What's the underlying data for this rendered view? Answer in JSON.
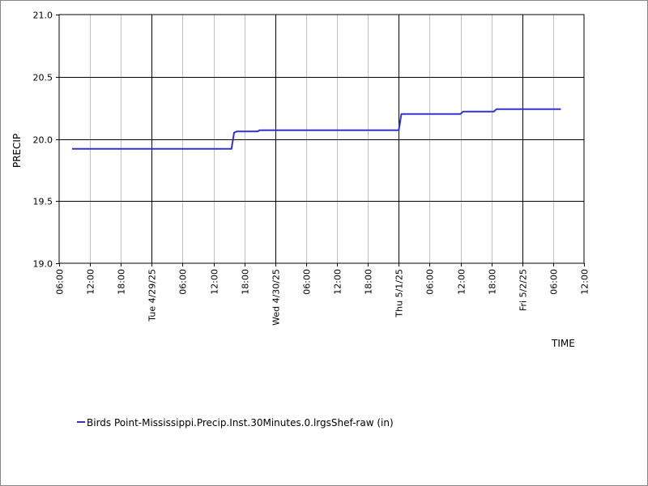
{
  "chart_data": {
    "type": "line",
    "title": "",
    "xlabel": "TIME",
    "ylabel": "PRECIP",
    "ylim": [
      19.0,
      21.0
    ],
    "y_ticks": [
      "19.0",
      "19.5",
      "20.0",
      "20.5",
      "21.0"
    ],
    "x_range": [
      "2025-04-28 06:00",
      "2025-05-02 12:00"
    ],
    "x_ticks": [
      {
        "t": "2025-04-28 06:00",
        "label": "06:00",
        "major": false
      },
      {
        "t": "2025-04-28 12:00",
        "label": "12:00",
        "major": false
      },
      {
        "t": "2025-04-28 18:00",
        "label": "18:00",
        "major": false
      },
      {
        "t": "2025-04-29 00:00",
        "label": "Tue 4/29/25",
        "major": true
      },
      {
        "t": "2025-04-29 06:00",
        "label": "06:00",
        "major": false
      },
      {
        "t": "2025-04-29 12:00",
        "label": "12:00",
        "major": false
      },
      {
        "t": "2025-04-29 18:00",
        "label": "18:00",
        "major": false
      },
      {
        "t": "2025-04-30 00:00",
        "label": "Wed 4/30/25",
        "major": true
      },
      {
        "t": "2025-04-30 06:00",
        "label": "06:00",
        "major": false
      },
      {
        "t": "2025-04-30 12:00",
        "label": "12:00",
        "major": false
      },
      {
        "t": "2025-04-30 18:00",
        "label": "18:00",
        "major": false
      },
      {
        "t": "2025-05-01 00:00",
        "label": "Thu 5/1/25",
        "major": true
      },
      {
        "t": "2025-05-01 06:00",
        "label": "06:00",
        "major": false
      },
      {
        "t": "2025-05-01 12:00",
        "label": "12:00",
        "major": false
      },
      {
        "t": "2025-05-01 18:00",
        "label": "18:00",
        "major": false
      },
      {
        "t": "2025-05-02 00:00",
        "label": "Fri 5/2/25",
        "major": true
      },
      {
        "t": "2025-05-02 06:00",
        "label": "06:00",
        "major": false
      },
      {
        "t": "2025-05-02 12:00",
        "label": "12:00",
        "major": false
      }
    ],
    "grid": true,
    "legend_position": "bottom-left",
    "series": [
      {
        "name": "Birds Point-Mississippi.Precip.Inst.30Minutes.0.lrgsShef-raw (in)",
        "color": "#3333cc",
        "points": [
          [
            "2025-04-28 08:30",
            19.92
          ],
          [
            "2025-04-29 15:30",
            19.92
          ],
          [
            "2025-04-29 16:00",
            20.05
          ],
          [
            "2025-04-29 16:30",
            20.06
          ],
          [
            "2025-04-29 20:30",
            20.06
          ],
          [
            "2025-04-29 21:00",
            20.07
          ],
          [
            "2025-05-01 00:00",
            20.07
          ],
          [
            "2025-05-01 00:30",
            20.2
          ],
          [
            "2025-05-01 12:00",
            20.2
          ],
          [
            "2025-05-01 12:30",
            20.22
          ],
          [
            "2025-05-01 18:30",
            20.22
          ],
          [
            "2025-05-01 19:00",
            20.24
          ],
          [
            "2025-05-02 07:30",
            20.24
          ]
        ]
      }
    ]
  }
}
